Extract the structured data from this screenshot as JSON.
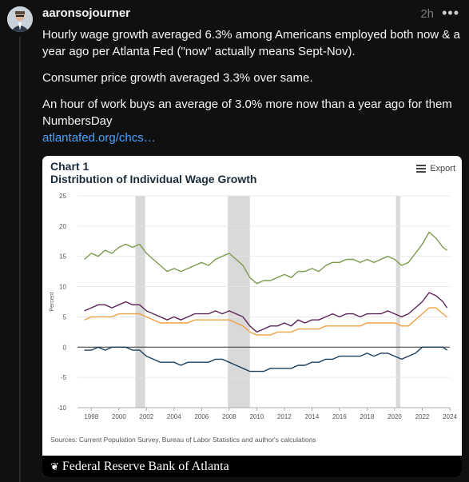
{
  "post": {
    "author": "aaronsojourner",
    "time": "2h",
    "more": "•••",
    "paragraphs": [
      "Hourly wage growth averaged 6.3% among Americans employed both now & a year ago per Atlanta Fed (\"now\" actually means Sept-Nov).",
      "Consumer price growth averaged 3.3% over same.",
      "An hour of work buys an average of 3.0% more now than a year ago for them NumbersDay"
    ],
    "link": "atlantafed.org/chcs…"
  },
  "card": {
    "chart_label": "Chart 1",
    "chart_title": "Distribution of Individual Wage Growth",
    "export_label": "Export",
    "sources": "Sources: Current Population Survey, Bureau of Labor Statistics and author's calculations",
    "footer_brand": "Federal Reserve Bank of Atlanta"
  },
  "chart_data": {
    "type": "line",
    "title": "Distribution of Individual Wage Growth",
    "ylabel": "Percent",
    "xlabel": "",
    "xlim": [
      1997,
      2024
    ],
    "ylim": [
      -10,
      25
    ],
    "yticks": [
      25,
      20,
      15,
      10,
      5,
      0,
      -5,
      -10
    ],
    "xticks": [
      1998,
      2000,
      2002,
      2004,
      2006,
      2008,
      2010,
      2012,
      2014,
      2016,
      2018,
      2020,
      2022,
      2024
    ],
    "recessions": [
      [
        2001.2,
        2001.9
      ],
      [
        2007.9,
        2009.5
      ],
      [
        2020.1,
        2020.4
      ]
    ],
    "colors": {
      "top": "#7d9a4e",
      "upper": "#5c2358",
      "middle": "#f0a045",
      "bottom": "#1e3f5c"
    },
    "series": [
      {
        "key": "top",
        "x": [
          1997.5,
          1998,
          1998.5,
          1999,
          1999.5,
          2000,
          2000.5,
          2001,
          2001.5,
          2002,
          2002.5,
          2003,
          2003.5,
          2004,
          2004.5,
          2005,
          2005.5,
          2006,
          2006.5,
          2007,
          2007.5,
          2008,
          2008.5,
          2009,
          2009.5,
          2010,
          2010.5,
          2011,
          2011.5,
          2012,
          2012.5,
          2013,
          2013.5,
          2014,
          2014.5,
          2015,
          2015.5,
          2016,
          2016.5,
          2017,
          2017.5,
          2018,
          2018.5,
          2019,
          2019.5,
          2020,
          2020.5,
          2021,
          2021.5,
          2022,
          2022.5,
          2023,
          2023.5,
          2023.8
        ],
        "values": [
          14.5,
          15.5,
          15.0,
          16.0,
          15.5,
          16.5,
          17.0,
          16.5,
          17.0,
          15.5,
          14.5,
          13.5,
          12.5,
          13.0,
          12.5,
          13.0,
          13.5,
          14.0,
          13.5,
          14.5,
          15.0,
          15.5,
          14.5,
          13.5,
          11.5,
          10.5,
          11.0,
          11.0,
          11.5,
          12.0,
          11.5,
          12.5,
          12.5,
          13.0,
          12.5,
          13.5,
          14.0,
          14.0,
          14.5,
          14.5,
          14.0,
          14.5,
          14.0,
          14.5,
          15.0,
          14.5,
          13.5,
          14.0,
          15.5,
          17.0,
          19.0,
          18.0,
          16.5,
          16.0
        ]
      },
      {
        "key": "upper",
        "x": [
          1997.5,
          1998,
          1998.5,
          1999,
          1999.5,
          2000,
          2000.5,
          2001,
          2001.5,
          2002,
          2002.5,
          2003,
          2003.5,
          2004,
          2004.5,
          2005,
          2005.5,
          2006,
          2006.5,
          2007,
          2007.5,
          2008,
          2008.5,
          2009,
          2009.5,
          2010,
          2010.5,
          2011,
          2011.5,
          2012,
          2012.5,
          2013,
          2013.5,
          2014,
          2014.5,
          2015,
          2015.5,
          2016,
          2016.5,
          2017,
          2017.5,
          2018,
          2018.5,
          2019,
          2019.5,
          2020,
          2020.5,
          2021,
          2021.5,
          2022,
          2022.5,
          2023,
          2023.5,
          2023.8
        ],
        "values": [
          6.0,
          6.5,
          7.0,
          7.0,
          6.5,
          7.0,
          7.5,
          7.0,
          7.0,
          6.0,
          5.5,
          5.0,
          4.5,
          5.0,
          4.5,
          5.0,
          5.5,
          5.5,
          5.5,
          6.0,
          5.5,
          6.0,
          5.5,
          5.0,
          3.5,
          2.5,
          3.0,
          3.5,
          3.5,
          4.0,
          3.5,
          4.5,
          4.0,
          4.5,
          4.5,
          5.0,
          5.5,
          5.0,
          5.5,
          5.5,
          5.0,
          5.5,
          5.5,
          5.5,
          6.0,
          5.5,
          5.0,
          5.5,
          6.5,
          7.5,
          9.0,
          8.5,
          7.5,
          6.5
        ]
      },
      {
        "key": "middle",
        "x": [
          1997.5,
          1998,
          1998.5,
          1999,
          1999.5,
          2000,
          2000.5,
          2001,
          2001.5,
          2002,
          2002.5,
          2003,
          2003.5,
          2004,
          2004.5,
          2005,
          2005.5,
          2006,
          2006.5,
          2007,
          2007.5,
          2008,
          2008.5,
          2009,
          2009.5,
          2010,
          2010.5,
          2011,
          2011.5,
          2012,
          2012.5,
          2013,
          2013.5,
          2014,
          2014.5,
          2015,
          2015.5,
          2016,
          2016.5,
          2017,
          2017.5,
          2018,
          2018.5,
          2019,
          2019.5,
          2020,
          2020.5,
          2021,
          2021.5,
          2022,
          2022.5,
          2023,
          2023.5,
          2023.8
        ],
        "values": [
          4.5,
          5.0,
          5.0,
          5.0,
          5.0,
          5.5,
          5.5,
          5.5,
          5.5,
          5.0,
          4.5,
          4.0,
          4.0,
          4.0,
          4.0,
          4.0,
          4.5,
          4.5,
          4.5,
          4.5,
          4.5,
          4.5,
          4.0,
          3.5,
          2.5,
          2.0,
          2.0,
          2.0,
          2.5,
          2.5,
          2.5,
          3.0,
          3.0,
          3.0,
          3.0,
          3.5,
          3.5,
          3.5,
          3.5,
          3.5,
          3.5,
          4.0,
          4.0,
          4.0,
          4.0,
          4.0,
          3.5,
          3.5,
          4.5,
          5.5,
          6.5,
          6.5,
          5.5,
          5.0
        ]
      },
      {
        "key": "bottom",
        "x": [
          1997.5,
          1998,
          1998.5,
          1999,
          1999.5,
          2000,
          2000.5,
          2001,
          2001.5,
          2002,
          2002.5,
          2003,
          2003.5,
          2004,
          2004.5,
          2005,
          2005.5,
          2006,
          2006.5,
          2007,
          2007.5,
          2008,
          2008.5,
          2009,
          2009.5,
          2010,
          2010.5,
          2011,
          2011.5,
          2012,
          2012.5,
          2013,
          2013.5,
          2014,
          2014.5,
          2015,
          2015.5,
          2016,
          2016.5,
          2017,
          2017.5,
          2018,
          2018.5,
          2019,
          2019.5,
          2020,
          2020.5,
          2021,
          2021.5,
          2022,
          2022.5,
          2023,
          2023.5,
          2023.8
        ],
        "values": [
          -0.5,
          -0.5,
          0.0,
          -0.5,
          0.0,
          0.0,
          0.0,
          -0.5,
          -0.5,
          -1.5,
          -2.0,
          -2.5,
          -2.5,
          -2.5,
          -3.0,
          -2.5,
          -2.5,
          -2.5,
          -2.5,
          -2.0,
          -2.0,
          -2.5,
          -3.0,
          -3.5,
          -4.0,
          -4.0,
          -4.0,
          -3.5,
          -3.5,
          -3.5,
          -3.5,
          -3.0,
          -3.0,
          -2.5,
          -2.5,
          -2.0,
          -2.0,
          -1.5,
          -1.5,
          -1.5,
          -1.5,
          -1.0,
          -1.5,
          -1.0,
          -1.0,
          -1.5,
          -2.0,
          -1.5,
          -1.0,
          0.0,
          0.0,
          0.0,
          0.0,
          -0.5
        ]
      }
    ]
  }
}
